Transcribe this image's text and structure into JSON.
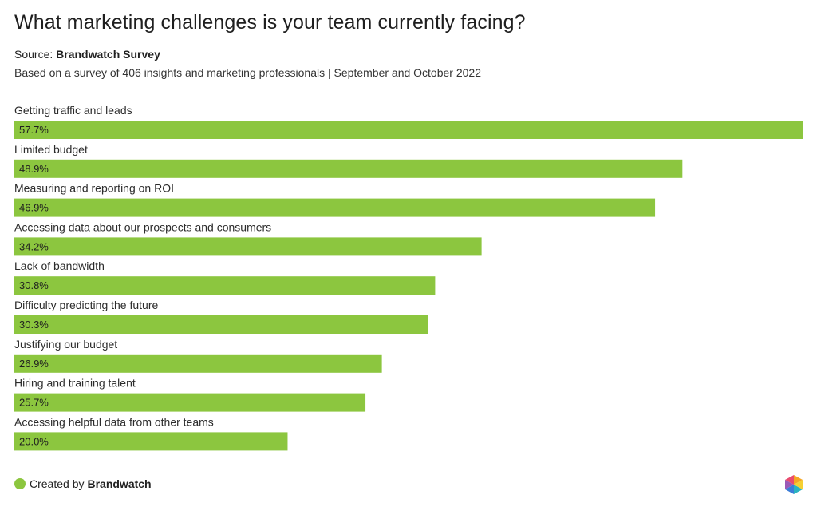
{
  "header": {
    "title": "What marketing challenges is your team currently facing?",
    "source_prefix": "Source:",
    "source_name": "Brandwatch Survey",
    "subtitle": "Based on a survey of 406 insights and marketing professionals | September and October 2022"
  },
  "footer": {
    "created_prefix": "Created by",
    "created_name": "Brandwatch",
    "logo_icon": "brandwatch-hexagon-icon"
  },
  "colors": {
    "bar": "#8cc63f",
    "dot": "#8cc63f"
  },
  "chart_data": {
    "type": "bar",
    "orientation": "horizontal",
    "categories": [
      "Getting traffic and leads",
      "Limited budget",
      "Measuring and reporting on ROI",
      "Accessing data about our prospects and consumers",
      "Lack of bandwidth",
      "Difficulty predicting the future",
      "Justifying our budget",
      "Hiring and training talent",
      "Accessing helpful data from other teams"
    ],
    "values": [
      57.7,
      48.9,
      46.9,
      34.2,
      30.8,
      30.3,
      26.9,
      25.7,
      20.0
    ],
    "value_labels": [
      "57.7%",
      "48.9%",
      "46.9%",
      "34.2%",
      "30.8%",
      "30.3%",
      "26.9%",
      "25.7%",
      "20.0%"
    ],
    "unit": "%",
    "title": "What marketing challenges is your team currently facing?",
    "xlabel": "",
    "ylabel": "",
    "xlim": [
      0,
      57.7
    ],
    "grid": false,
    "legend": "none"
  }
}
